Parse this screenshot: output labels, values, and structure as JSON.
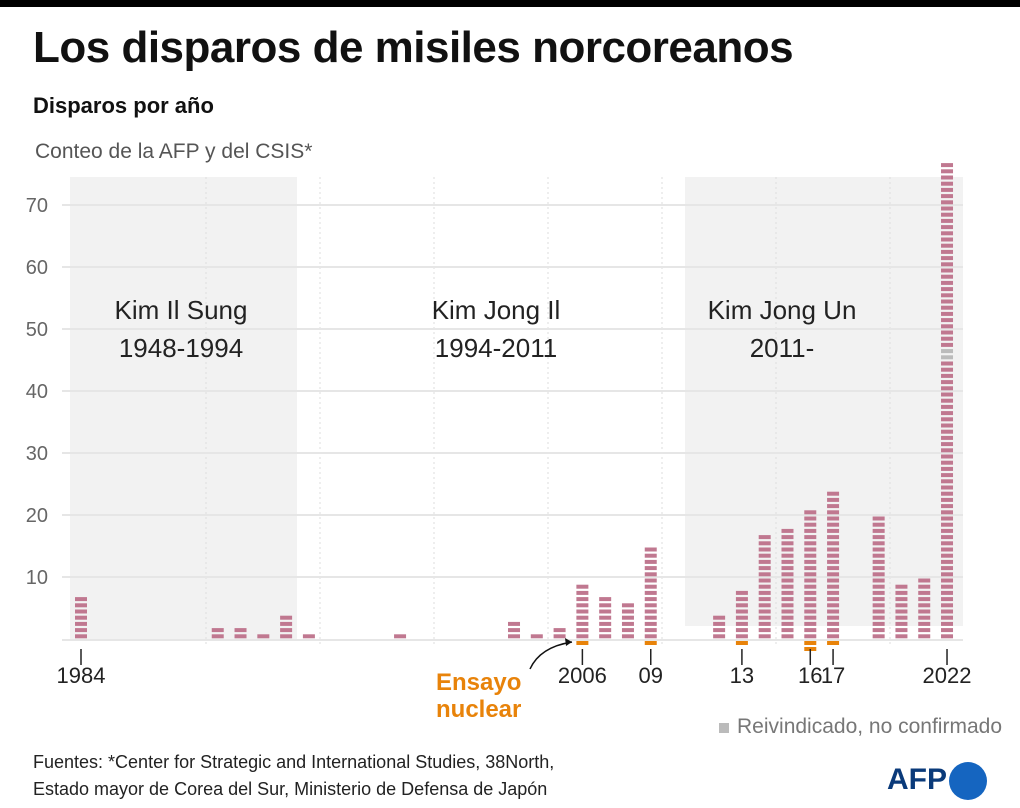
{
  "title": "Los disparos de misiles norcoreanos",
  "subtitle": "Disparos por año",
  "note": "Conteo de la AFP y del CSIS*",
  "sources_line1": "Fuentes: *Center for Strategic and International Studies, 38North,",
  "sources_line2": "Estado mayor de Corea del Sur, Ministerio de Defensa de Japón",
  "legend_label": "Reivindicado, no confirmado",
  "nuclear_label_1": "Ensayo",
  "nuclear_label_2": "nuclear",
  "logo": "AFP",
  "colors": {
    "bar": "#c07890",
    "nuclear": "#e8830a",
    "unconfirmed": "#bbbbbb",
    "era": "#f2f2f2"
  },
  "chart_data": {
    "type": "bar",
    "ylim": [
      0,
      76
    ],
    "yticks": [
      10,
      20,
      30,
      40,
      50,
      60,
      70
    ],
    "grid": true,
    "x": [
      1984,
      1990,
      1991,
      1992,
      1993,
      1994,
      1998,
      2003,
      2004,
      2005,
      2006,
      2007,
      2008,
      2009,
      2012,
      2013,
      2014,
      2015,
      2016,
      2017,
      2019,
      2020,
      2021,
      2022
    ],
    "values": [
      7,
      2,
      2,
      1,
      4,
      1,
      1,
      3,
      1,
      2,
      9,
      7,
      6,
      15,
      4,
      8,
      17,
      18,
      21,
      24,
      20,
      9,
      10,
      77
    ],
    "unconfirmed": [
      0,
      0,
      0,
      0,
      0,
      0,
      0,
      0,
      0,
      0,
      0,
      0,
      0,
      0,
      0,
      0,
      0,
      0,
      0,
      0,
      0,
      0,
      0,
      2
    ],
    "nuclear_tests": {
      "2006": 1,
      "2009": 1,
      "2013": 1,
      "2016": 2,
      "2017": 1
    },
    "xtick_labels": [
      {
        "year": 1984,
        "label": "1984"
      },
      {
        "year": 2006,
        "label": "2006"
      },
      {
        "year": 2009,
        "label": "09"
      },
      {
        "year": 2013,
        "label": "13"
      },
      {
        "year": 2016,
        "label": "16"
      },
      {
        "year": 2017,
        "label": "17"
      },
      {
        "year": 2022,
        "label": "2022"
      }
    ],
    "eras": [
      {
        "name": "Kim Il Sung",
        "years": "1948-1994",
        "from": 1984,
        "to": 1994,
        "shaded": true
      },
      {
        "name": "Kim Jong Il",
        "years": "1994-2011",
        "from": 1994,
        "to": 2011,
        "shaded": false
      },
      {
        "name": "Kim Jong Un",
        "years": "2011-",
        "from": 2011,
        "to": 2022,
        "shaded": true
      }
    ]
  }
}
